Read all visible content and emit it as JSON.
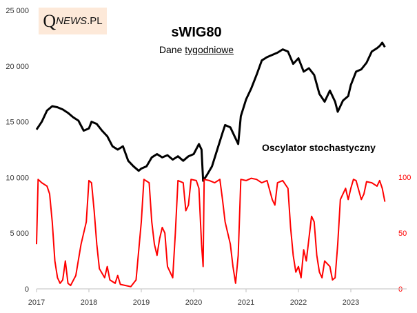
{
  "logo": {
    "q": "Q",
    "rest": "NEWS",
    "pl": ".PL"
  },
  "chart_data": {
    "type": "line",
    "title": "sWIG80",
    "subtitle_plain": "Dane ",
    "subtitle_underlined": "tygodniowe",
    "annotation": "Oscylator stochastyczny",
    "left_axis": {
      "range": [
        0,
        25000
      ],
      "ticks": [
        "0",
        "5 000",
        "10 000",
        "15 000",
        "20 000",
        "25 000"
      ],
      "tick_values": [
        0,
        5000,
        10000,
        15000,
        20000,
        25000
      ]
    },
    "right_axis": {
      "range": [
        0,
        100
      ],
      "ticks": [
        "0",
        "50",
        "100"
      ],
      "tick_values": [
        0,
        50,
        100
      ],
      "color": "#ff0000"
    },
    "x_ticks": [
      "2017",
      "2018",
      "2019",
      "2020",
      "2021",
      "2022",
      "2023"
    ],
    "x_tick_values": [
      2017,
      2018,
      2019,
      2020,
      2021,
      2022,
      2023
    ],
    "series": [
      {
        "name": "sWIG80",
        "axis": "left",
        "color": "#000000",
        "points": [
          [
            2017.0,
            14300
          ],
          [
            2017.1,
            15000
          ],
          [
            2017.2,
            16000
          ],
          [
            2017.3,
            16400
          ],
          [
            2017.4,
            16300
          ],
          [
            2017.5,
            16100
          ],
          [
            2017.6,
            15800
          ],
          [
            2017.7,
            15400
          ],
          [
            2017.8,
            15100
          ],
          [
            2017.9,
            14200
          ],
          [
            2018.0,
            14400
          ],
          [
            2018.05,
            15000
          ],
          [
            2018.15,
            14800
          ],
          [
            2018.25,
            14200
          ],
          [
            2018.35,
            13700
          ],
          [
            2018.45,
            12800
          ],
          [
            2018.55,
            12500
          ],
          [
            2018.65,
            12800
          ],
          [
            2018.75,
            11500
          ],
          [
            2018.85,
            11000
          ],
          [
            2018.95,
            10600
          ],
          [
            2019.0,
            10800
          ],
          [
            2019.1,
            11000
          ],
          [
            2019.2,
            11800
          ],
          [
            2019.3,
            12100
          ],
          [
            2019.4,
            11800
          ],
          [
            2019.5,
            12000
          ],
          [
            2019.6,
            11600
          ],
          [
            2019.7,
            11900
          ],
          [
            2019.8,
            11500
          ],
          [
            2019.9,
            11900
          ],
          [
            2020.0,
            12100
          ],
          [
            2020.1,
            13000
          ],
          [
            2020.15,
            12500
          ],
          [
            2020.18,
            9700
          ],
          [
            2020.25,
            10200
          ],
          [
            2020.35,
            11000
          ],
          [
            2020.45,
            12500
          ],
          [
            2020.55,
            14000
          ],
          [
            2020.6,
            14700
          ],
          [
            2020.7,
            14500
          ],
          [
            2020.8,
            13500
          ],
          [
            2020.85,
            13000
          ],
          [
            2020.9,
            15500
          ],
          [
            2021.0,
            17000
          ],
          [
            2021.1,
            18000
          ],
          [
            2021.2,
            19200
          ],
          [
            2021.3,
            20500
          ],
          [
            2021.4,
            20800
          ],
          [
            2021.5,
            21000
          ],
          [
            2021.6,
            21200
          ],
          [
            2021.7,
            21500
          ],
          [
            2021.8,
            21300
          ],
          [
            2021.9,
            20200
          ],
          [
            2022.0,
            20700
          ],
          [
            2022.1,
            19500
          ],
          [
            2022.2,
            19800
          ],
          [
            2022.3,
            19200
          ],
          [
            2022.4,
            17500
          ],
          [
            2022.5,
            16800
          ],
          [
            2022.6,
            17800
          ],
          [
            2022.7,
            16800
          ],
          [
            2022.75,
            15900
          ],
          [
            2022.85,
            16900
          ],
          [
            2022.95,
            17300
          ],
          [
            2023.0,
            18300
          ],
          [
            2023.1,
            19500
          ],
          [
            2023.2,
            19700
          ],
          [
            2023.3,
            20300
          ],
          [
            2023.4,
            21300
          ],
          [
            2023.5,
            21600
          ],
          [
            2023.55,
            21800
          ],
          [
            2023.6,
            22100
          ],
          [
            2023.65,
            21700
          ]
        ]
      },
      {
        "name": "Oscylator stochastyczny",
        "axis": "right",
        "color": "#ff0000",
        "points": [
          [
            2017.0,
            40
          ],
          [
            2017.03,
            98
          ],
          [
            2017.1,
            95
          ],
          [
            2017.2,
            92
          ],
          [
            2017.25,
            85
          ],
          [
            2017.3,
            60
          ],
          [
            2017.35,
            25
          ],
          [
            2017.4,
            10
          ],
          [
            2017.45,
            5
          ],
          [
            2017.5,
            8
          ],
          [
            2017.55,
            25
          ],
          [
            2017.6,
            5
          ],
          [
            2017.65,
            3
          ],
          [
            2017.75,
            12
          ],
          [
            2017.85,
            40
          ],
          [
            2017.95,
            60
          ],
          [
            2018.0,
            97
          ],
          [
            2018.05,
            95
          ],
          [
            2018.1,
            70
          ],
          [
            2018.15,
            40
          ],
          [
            2018.2,
            18
          ],
          [
            2018.3,
            10
          ],
          [
            2018.35,
            20
          ],
          [
            2018.4,
            8
          ],
          [
            2018.5,
            5
          ],
          [
            2018.55,
            12
          ],
          [
            2018.6,
            4
          ],
          [
            2018.7,
            3
          ],
          [
            2018.8,
            2
          ],
          [
            2018.9,
            8
          ],
          [
            2019.0,
            60
          ],
          [
            2019.05,
            98
          ],
          [
            2019.15,
            95
          ],
          [
            2019.2,
            60
          ],
          [
            2019.25,
            40
          ],
          [
            2019.3,
            30
          ],
          [
            2019.35,
            45
          ],
          [
            2019.4,
            55
          ],
          [
            2019.45,
            50
          ],
          [
            2019.5,
            20
          ],
          [
            2019.6,
            10
          ],
          [
            2019.65,
            50
          ],
          [
            2019.7,
            97
          ],
          [
            2019.8,
            95
          ],
          [
            2019.85,
            70
          ],
          [
            2019.9,
            75
          ],
          [
            2019.95,
            98
          ],
          [
            2020.05,
            97
          ],
          [
            2020.1,
            90
          ],
          [
            2020.15,
            40
          ],
          [
            2020.18,
            20
          ],
          [
            2020.2,
            98
          ],
          [
            2020.3,
            97
          ],
          [
            2020.4,
            95
          ],
          [
            2020.5,
            98
          ],
          [
            2020.55,
            80
          ],
          [
            2020.6,
            60
          ],
          [
            2020.7,
            40
          ],
          [
            2020.75,
            20
          ],
          [
            2020.8,
            5
          ],
          [
            2020.85,
            30
          ],
          [
            2020.9,
            98
          ],
          [
            2021.0,
            97
          ],
          [
            2021.1,
            99
          ],
          [
            2021.2,
            98
          ],
          [
            2021.3,
            95
          ],
          [
            2021.4,
            97
          ],
          [
            2021.5,
            80
          ],
          [
            2021.55,
            75
          ],
          [
            2021.6,
            95
          ],
          [
            2021.7,
            97
          ],
          [
            2021.8,
            90
          ],
          [
            2021.85,
            55
          ],
          [
            2021.9,
            30
          ],
          [
            2021.95,
            15
          ],
          [
            2022.0,
            20
          ],
          [
            2022.05,
            10
          ],
          [
            2022.1,
            35
          ],
          [
            2022.15,
            25
          ],
          [
            2022.2,
            45
          ],
          [
            2022.25,
            65
          ],
          [
            2022.3,
            60
          ],
          [
            2022.35,
            30
          ],
          [
            2022.4,
            15
          ],
          [
            2022.45,
            10
          ],
          [
            2022.5,
            25
          ],
          [
            2022.6,
            20
          ],
          [
            2022.65,
            8
          ],
          [
            2022.7,
            10
          ],
          [
            2022.75,
            40
          ],
          [
            2022.8,
            80
          ],
          [
            2022.85,
            85
          ],
          [
            2022.9,
            90
          ],
          [
            2022.95,
            80
          ],
          [
            2023.0,
            90
          ],
          [
            2023.05,
            98
          ],
          [
            2023.1,
            97
          ],
          [
            2023.2,
            80
          ],
          [
            2023.25,
            85
          ],
          [
            2023.3,
            96
          ],
          [
            2023.4,
            95
          ],
          [
            2023.5,
            92
          ],
          [
            2023.55,
            97
          ],
          [
            2023.6,
            90
          ],
          [
            2023.65,
            78
          ]
        ]
      }
    ]
  }
}
